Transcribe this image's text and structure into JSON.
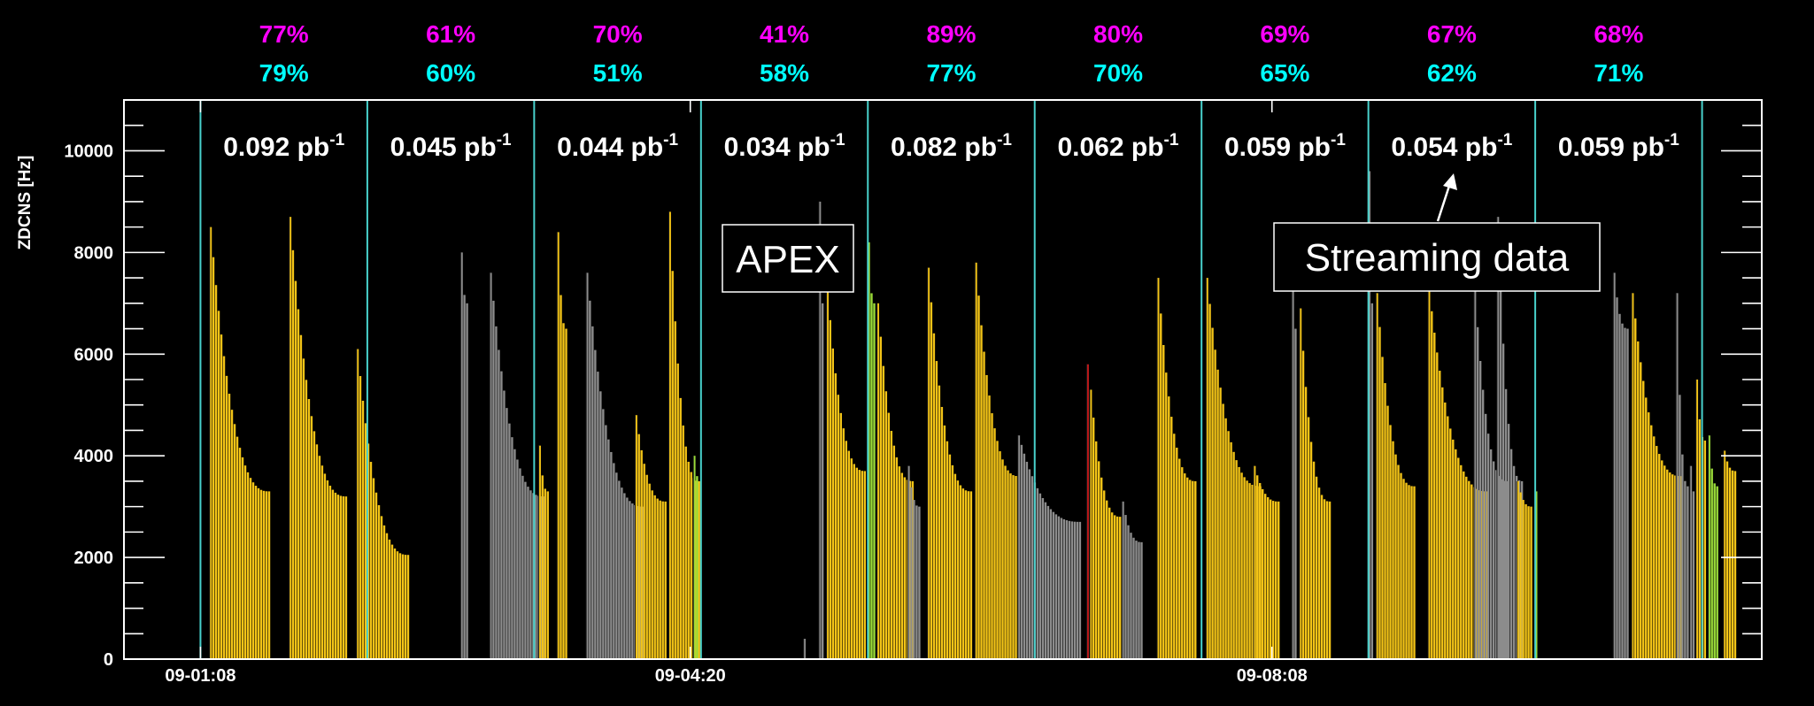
{
  "chart_data": {
    "type": "bar",
    "ylabel": "ZDCNS [Hz]",
    "ylim": [
      0,
      11000
    ],
    "yticks": [
      0,
      2000,
      4000,
      6000,
      8000,
      10000
    ],
    "ytick_labels": [
      "0",
      "2000",
      "4000",
      "6000",
      "8000",
      "10000"
    ],
    "xtick_labels": [
      {
        "label": "09-01:08",
        "hours": 0.0
      },
      {
        "label": "09-04:20",
        "hours": 3.2
      },
      {
        "label": "09-08:08",
        "hours": 7.0
      }
    ],
    "x_unit": "hours",
    "xlim": [
      -0.5,
      10.2
    ],
    "grid": false,
    "period_boundaries_hours": [
      0.0,
      1.09,
      2.18,
      3.27,
      4.36,
      5.45,
      6.54,
      7.63,
      8.72,
      9.81
    ],
    "periods": [
      {
        "pct_magenta": "77%",
        "pct_cyan": "79%",
        "lumi": "0.092"
      },
      {
        "pct_magenta": "61%",
        "pct_cyan": "60%",
        "lumi": "0.045"
      },
      {
        "pct_magenta": "70%",
        "pct_cyan": "51%",
        "lumi": "0.044"
      },
      {
        "pct_magenta": "41%",
        "pct_cyan": "58%",
        "lumi": "0.034"
      },
      {
        "pct_magenta": "89%",
        "pct_cyan": "77%",
        "lumi": "0.082"
      },
      {
        "pct_magenta": "80%",
        "pct_cyan": "70%",
        "lumi": "0.062"
      },
      {
        "pct_magenta": "69%",
        "pct_cyan": "65%",
        "lumi": "0.059"
      },
      {
        "pct_magenta": "67%",
        "pct_cyan": "62%",
        "lumi": "0.054"
      },
      {
        "pct_magenta": "68%",
        "pct_cyan": "71%",
        "lumi": "0.059"
      }
    ],
    "lumi_unit": "pb",
    "lumi_exp": "-1",
    "fills": [
      {
        "start": 0.06,
        "end": 0.47,
        "start_rate": 8500,
        "end_rate": 3300,
        "color": "yellow"
      },
      {
        "start": 0.58,
        "end": 0.97,
        "start_rate": 8700,
        "end_rate": 3200,
        "color": "yellow"
      },
      {
        "start": 1.02,
        "end": 1.38,
        "start_rate": 6100,
        "end_rate": 2050,
        "color": "yellow"
      },
      {
        "start": 1.7,
        "end": 1.76,
        "start_rate": 8000,
        "end_rate": 7000,
        "color": "gray"
      },
      {
        "start": 1.89,
        "end": 2.26,
        "start_rate": 7600,
        "end_rate": 3200,
        "color": "gray"
      },
      {
        "start": 2.21,
        "end": 2.29,
        "start_rate": 4200,
        "end_rate": 3300,
        "color": "yellow"
      },
      {
        "start": 2.33,
        "end": 2.4,
        "start_rate": 8400,
        "end_rate": 6500,
        "color": "yellow"
      },
      {
        "start": 2.52,
        "end": 2.91,
        "start_rate": 7600,
        "end_rate": 3000,
        "color": "gray"
      },
      {
        "start": 2.84,
        "end": 3.05,
        "start_rate": 4800,
        "end_rate": 3100,
        "color": "yellow"
      },
      {
        "start": 3.06,
        "end": 3.27,
        "start_rate": 8800,
        "end_rate": 3500,
        "color": "yellow"
      },
      {
        "start": 3.22,
        "end": 3.27,
        "start_rate": 4000,
        "end_rate": 3600,
        "color": "green"
      },
      {
        "start": 3.94,
        "end": 3.96,
        "start_rate": 400,
        "end_rate": 300,
        "color": "gray"
      },
      {
        "start": 4.04,
        "end": 4.09,
        "start_rate": 9000,
        "end_rate": 7000,
        "color": "gray"
      },
      {
        "start": 4.09,
        "end": 4.36,
        "start_rate": 7300,
        "end_rate": 3700,
        "color": "yellow"
      },
      {
        "start": 4.36,
        "end": 4.42,
        "start_rate": 8200,
        "end_rate": 7000,
        "color": "green"
      },
      {
        "start": 4.42,
        "end": 4.68,
        "start_rate": 7000,
        "end_rate": 3500,
        "color": "yellow"
      },
      {
        "start": 4.62,
        "end": 4.72,
        "start_rate": 3800,
        "end_rate": 3000,
        "color": "gray"
      },
      {
        "start": 4.75,
        "end": 5.05,
        "start_rate": 7700,
        "end_rate": 3300,
        "color": "yellow"
      },
      {
        "start": 5.06,
        "end": 5.36,
        "start_rate": 7800,
        "end_rate": 3600,
        "color": "yellow"
      },
      {
        "start": 5.34,
        "end": 5.77,
        "start_rate": 4400,
        "end_rate": 2700,
        "color": "gray"
      },
      {
        "start": 5.79,
        "end": 5.81,
        "start_rate": 5800,
        "end_rate": 5000,
        "color": "red"
      },
      {
        "start": 5.81,
        "end": 6.02,
        "start_rate": 5300,
        "end_rate": 2800,
        "color": "yellow"
      },
      {
        "start": 6.02,
        "end": 6.17,
        "start_rate": 3100,
        "end_rate": 2300,
        "color": "gray"
      },
      {
        "start": 6.25,
        "end": 6.52,
        "start_rate": 7500,
        "end_rate": 3500,
        "color": "yellow"
      },
      {
        "start": 6.57,
        "end": 6.95,
        "start_rate": 7500,
        "end_rate": 3400,
        "color": "yellow"
      },
      {
        "start": 6.88,
        "end": 7.07,
        "start_rate": 3800,
        "end_rate": 3100,
        "color": "yellow"
      },
      {
        "start": 7.13,
        "end": 7.18,
        "start_rate": 7700,
        "end_rate": 6500,
        "color": "gray"
      },
      {
        "start": 7.18,
        "end": 7.4,
        "start_rate": 6900,
        "end_rate": 3100,
        "color": "yellow"
      },
      {
        "start": 7.63,
        "end": 7.68,
        "start_rate": 9600,
        "end_rate": 7000,
        "color": "gray"
      },
      {
        "start": 7.68,
        "end": 7.95,
        "start_rate": 7200,
        "end_rate": 3400,
        "color": "yellow"
      },
      {
        "start": 8.02,
        "end": 8.42,
        "start_rate": 7300,
        "end_rate": 3300,
        "color": "yellow"
      },
      {
        "start": 8.32,
        "end": 8.56,
        "start_rate": 7300,
        "end_rate": 3500,
        "color": "gray"
      },
      {
        "start": 8.47,
        "end": 8.65,
        "start_rate": 8700,
        "end_rate": 3500,
        "color": "gray"
      },
      {
        "start": 8.6,
        "end": 8.72,
        "start_rate": 3500,
        "end_rate": 3000,
        "color": "yellow"
      },
      {
        "start": 8.72,
        "end": 8.74,
        "start_rate": 3300,
        "end_rate": 3200,
        "color": "green"
      },
      {
        "start": 9.23,
        "end": 9.35,
        "start_rate": 7600,
        "end_rate": 6500,
        "color": "gray"
      },
      {
        "start": 9.35,
        "end": 9.68,
        "start_rate": 7200,
        "end_rate": 3600,
        "color": "yellow"
      },
      {
        "start": 9.64,
        "end": 9.74,
        "start_rate": 7200,
        "end_rate": 3400,
        "color": "gray"
      },
      {
        "start": 9.73,
        "end": 9.78,
        "start_rate": 3800,
        "end_rate": 3300,
        "color": "gray"
      },
      {
        "start": 9.77,
        "end": 9.85,
        "start_rate": 5500,
        "end_rate": 4300,
        "color": "yellow"
      },
      {
        "start": 9.85,
        "end": 9.92,
        "start_rate": 4400,
        "end_rate": 3400,
        "color": "green"
      },
      {
        "start": 9.95,
        "end": 10.04,
        "start_rate": 4100,
        "end_rate": 3700,
        "color": "yellow"
      }
    ],
    "annotations": [
      {
        "text": "APEX"
      },
      {
        "text": "Streaming data"
      }
    ]
  },
  "colors": {
    "background": "#000000",
    "axis": "#ffffff",
    "boundary": "#48d1cc",
    "magenta": "#ff00ff",
    "cyan": "#00ffff",
    "yellow": "#f3c417",
    "gray": "#8c8c8c",
    "green": "#9adc39",
    "red": "#c0191a",
    "bar_edge": "#1a1a1a"
  }
}
